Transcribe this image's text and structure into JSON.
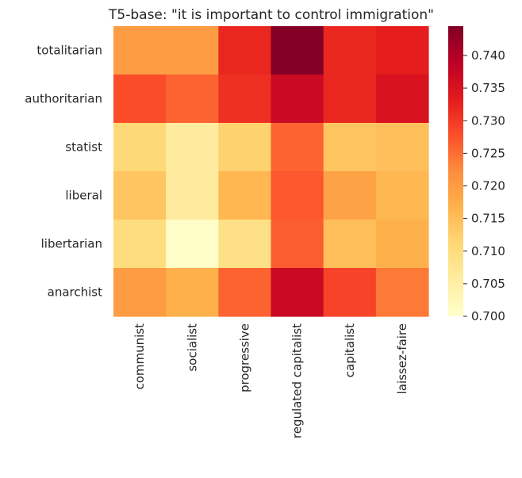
{
  "chart_data": {
    "type": "heatmap",
    "title": "T5-base: \"it is important to control immigration\"",
    "xlabel": "",
    "ylabel": "",
    "x_categories": [
      "communist",
      "socialist",
      "progressive",
      "regulated capitalist",
      "capitalist",
      "laissez-faire"
    ],
    "y_categories": [
      "totalitarian",
      "authoritarian",
      "statist",
      "liberal",
      "libertarian",
      "anarchist"
    ],
    "values": [
      [
        0.72,
        0.72,
        0.732,
        0.744,
        0.732,
        0.733
      ],
      [
        0.728,
        0.726,
        0.731,
        0.737,
        0.732,
        0.735
      ],
      [
        0.711,
        0.706,
        0.712,
        0.726,
        0.714,
        0.715
      ],
      [
        0.714,
        0.706,
        0.716,
        0.727,
        0.719,
        0.716
      ],
      [
        0.71,
        0.7005,
        0.709,
        0.7265,
        0.715,
        0.717
      ],
      [
        0.72,
        0.717,
        0.726,
        0.737,
        0.729,
        0.724
      ]
    ],
    "vmin": 0.7,
    "vmax": 0.7445,
    "colormap": "YlOrRd",
    "colorbar_ticks": [
      "0.700",
      "0.705",
      "0.710",
      "0.715",
      "0.720",
      "0.725",
      "0.730",
      "0.735",
      "0.740"
    ],
    "grid": false
  }
}
